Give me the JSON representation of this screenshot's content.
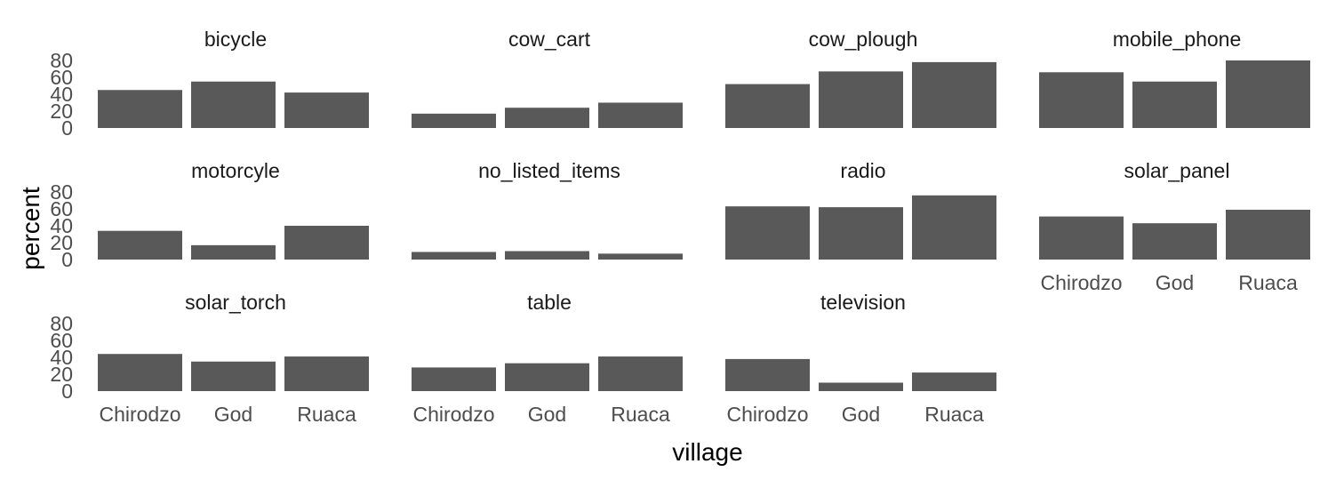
{
  "chart_data": {
    "type": "bar",
    "layout": "faceted",
    "bar_color": "#595959",
    "background": "#ffffff",
    "grid": false,
    "xlabel": "village",
    "ylabel": "percent",
    "categories": [
      "Chirodzo",
      "God",
      "Ruaca"
    ],
    "yticks": [
      0,
      20,
      40,
      60,
      80
    ],
    "ylim": [
      0,
      80
    ],
    "panels": [
      {
        "name": "bicycle",
        "values": [
          45,
          55,
          42
        ]
      },
      {
        "name": "cow_cart",
        "values": [
          17,
          24,
          30
        ]
      },
      {
        "name": "cow_plough",
        "values": [
          52,
          67,
          78
        ]
      },
      {
        "name": "mobile_phone",
        "values": [
          66,
          55,
          80
        ]
      },
      {
        "name": "motorcyle",
        "values": [
          34,
          17,
          40
        ]
      },
      {
        "name": "no_listed_items",
        "values": [
          9,
          10,
          7
        ]
      },
      {
        "name": "radio",
        "values": [
          63,
          62,
          76
        ]
      },
      {
        "name": "solar_panel",
        "values": [
          51,
          43,
          59
        ]
      },
      {
        "name": "solar_torch",
        "values": [
          44,
          35,
          41
        ]
      },
      {
        "name": "table",
        "values": [
          28,
          33,
          41
        ]
      },
      {
        "name": "television",
        "values": [
          38,
          10,
          22
        ]
      }
    ]
  }
}
